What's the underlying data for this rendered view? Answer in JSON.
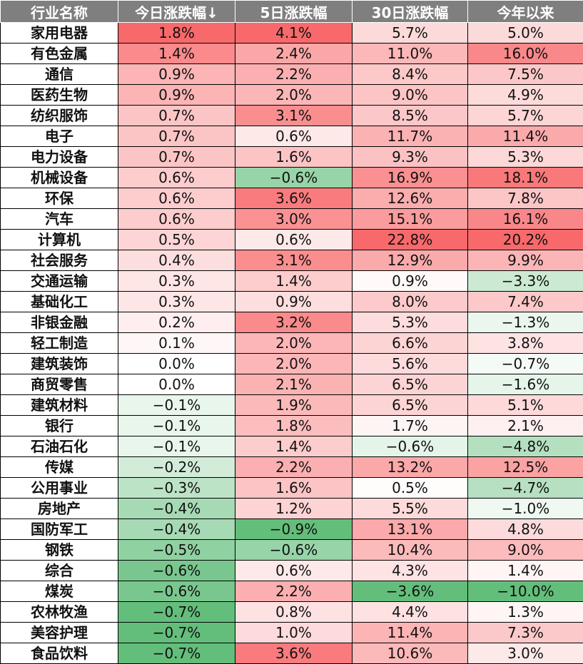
{
  "colors": {
    "header_bg": "#7f7f7f",
    "header_text": "#ffffff",
    "positive_max": "#f8696b",
    "negative_max": "#63be7b",
    "neutral": "#ffffff"
  },
  "headers": [
    "行业名称",
    "今日涨跌幅↓",
    "5日涨跌幅",
    "30日涨跌幅",
    "今年以来"
  ],
  "rows": [
    {
      "name": "家用电器",
      "values": [
        "1.8%",
        "4.1%",
        "5.7%",
        "5.0%"
      ]
    },
    {
      "name": "有色金属",
      "values": [
        "1.4%",
        "2.4%",
        "11.0%",
        "16.0%"
      ]
    },
    {
      "name": "通信",
      "values": [
        "0.9%",
        "2.2%",
        "8.4%",
        "7.5%"
      ]
    },
    {
      "name": "医药生物",
      "values": [
        "0.9%",
        "2.0%",
        "9.0%",
        "4.9%"
      ]
    },
    {
      "name": "纺织服饰",
      "values": [
        "0.7%",
        "3.1%",
        "8.5%",
        "5.7%"
      ]
    },
    {
      "name": "电子",
      "values": [
        "0.7%",
        "0.6%",
        "11.7%",
        "11.4%"
      ]
    },
    {
      "name": "电力设备",
      "values": [
        "0.7%",
        "1.6%",
        "9.3%",
        "5.3%"
      ]
    },
    {
      "name": "机械设备",
      "values": [
        "0.6%",
        "−0.6%",
        "16.9%",
        "18.1%"
      ]
    },
    {
      "name": "环保",
      "values": [
        "0.6%",
        "3.6%",
        "12.6%",
        "7.8%"
      ]
    },
    {
      "name": "汽车",
      "values": [
        "0.6%",
        "3.0%",
        "15.1%",
        "16.1%"
      ]
    },
    {
      "name": "计算机",
      "values": [
        "0.5%",
        "0.6%",
        "22.8%",
        "20.2%"
      ]
    },
    {
      "name": "社会服务",
      "values": [
        "0.4%",
        "3.1%",
        "12.9%",
        "9.9%"
      ]
    },
    {
      "name": "交通运输",
      "values": [
        "0.3%",
        "1.4%",
        "0.9%",
        "−3.3%"
      ]
    },
    {
      "name": "基础化工",
      "values": [
        "0.3%",
        "0.9%",
        "8.0%",
        "7.4%"
      ]
    },
    {
      "name": "非银金融",
      "values": [
        "0.2%",
        "3.2%",
        "5.3%",
        "−1.3%"
      ]
    },
    {
      "name": "轻工制造",
      "values": [
        "0.1%",
        "2.0%",
        "6.6%",
        "3.8%"
      ]
    },
    {
      "name": "建筑装饰",
      "values": [
        "0.0%",
        "2.0%",
        "5.6%",
        "−0.7%"
      ]
    },
    {
      "name": "商贸零售",
      "values": [
        "0.0%",
        "2.1%",
        "6.5%",
        "−1.6%"
      ]
    },
    {
      "name": "建筑材料",
      "values": [
        "−0.1%",
        "1.9%",
        "6.5%",
        "5.1%"
      ]
    },
    {
      "name": "银行",
      "values": [
        "−0.1%",
        "1.8%",
        "1.7%",
        "2.1%"
      ]
    },
    {
      "name": "石油石化",
      "values": [
        "−0.1%",
        "1.4%",
        "−0.6%",
        "−4.8%"
      ]
    },
    {
      "name": "传媒",
      "values": [
        "−0.2%",
        "2.2%",
        "13.2%",
        "12.5%"
      ]
    },
    {
      "name": "公用事业",
      "values": [
        "−0.3%",
        "1.6%",
        "0.5%",
        "−4.7%"
      ]
    },
    {
      "name": "房地产",
      "values": [
        "−0.4%",
        "1.2%",
        "5.5%",
        "−1.0%"
      ]
    },
    {
      "name": "国防军工",
      "values": [
        "−0.4%",
        "−0.9%",
        "13.1%",
        "4.8%"
      ]
    },
    {
      "name": "钢铁",
      "values": [
        "−0.5%",
        "−0.6%",
        "10.4%",
        "9.0%"
      ]
    },
    {
      "name": "综合",
      "values": [
        "−0.6%",
        "0.6%",
        "4.3%",
        "1.4%"
      ]
    },
    {
      "name": "煤炭",
      "values": [
        "−0.6%",
        "2.2%",
        "−3.6%",
        "−10.0%"
      ]
    },
    {
      "name": "农林牧渔",
      "values": [
        "−0.7%",
        "0.8%",
        "4.4%",
        "1.3%"
      ]
    },
    {
      "name": "美容护理",
      "values": [
        "−0.7%",
        "1.0%",
        "11.4%",
        "7.3%"
      ]
    },
    {
      "name": "食品饮料",
      "values": [
        "−0.7%",
        "3.6%",
        "10.6%",
        "3.0%"
      ]
    }
  ]
}
